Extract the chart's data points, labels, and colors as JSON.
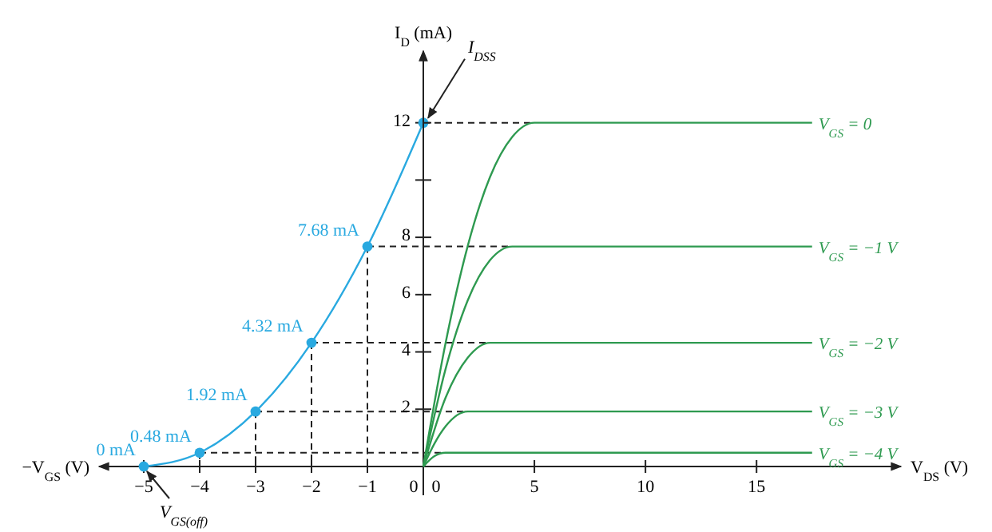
{
  "chart_data": [
    {
      "type": "line",
      "xlabel": "−V$_{GS}$ (V)",
      "ylabel": "I$_{D}$ (mA)",
      "xlim": [
        -5.8,
        0
      ],
      "xticks": [
        -5,
        -4,
        -3,
        -2,
        -1,
        0
      ],
      "ylim": [
        0,
        14.5
      ],
      "yticks": [
        2,
        4,
        6,
        8,
        {
          "value": 10,
          "label": null
        },
        12
      ],
      "marker": "circle",
      "x": [
        -5,
        -4,
        -3,
        -2,
        -1,
        0
      ],
      "series": [
        {
          "color": "#29a9e0",
          "values": [
            0,
            0.48,
            1.92,
            4.32,
            7.68,
            12
          ],
          "value_labels": [
            "0 mA",
            "0.48 mA",
            "1.92 mA",
            "4.32 mA",
            "7.68 mA",
            null
          ]
        }
      ],
      "annotations": [
        {
          "text": "V$_{GS(off)}$",
          "x": -5,
          "y": 0
        },
        {
          "text": "I$_{DSS}$",
          "x": 0,
          "y": 12
        }
      ]
    },
    {
      "type": "line",
      "xlabel": "V$_{DS}$ (V)",
      "xlim": [
        0,
        21.5
      ],
      "xticks": [
        0,
        5,
        10,
        15
      ],
      "ylim": [
        0,
        14.5
      ],
      "tick_labels": "x",
      "marker": "none",
      "series": [
        {
          "name": "V$_{GS}$ = 0",
          "color": "#2e9a50",
          "x": [
            0,
            1,
            2,
            3,
            4,
            5,
            17.5
          ],
          "values": [
            0,
            4.3,
            7.7,
            10.1,
            11.5,
            12,
            12
          ]
        },
        {
          "name": "V$_{GS}$ = −1 V",
          "color": "#2e9a50",
          "x": [
            0,
            1,
            2,
            3,
            4,
            17.5
          ],
          "values": [
            0,
            3.4,
            5.8,
            7.2,
            7.68,
            7.68
          ]
        },
        {
          "name": "V$_{GS}$ = −2 V",
          "color": "#2e9a50",
          "x": [
            0,
            1,
            2,
            3,
            17.5
          ],
          "values": [
            0,
            2.4,
            3.8,
            4.32,
            4.32
          ]
        },
        {
          "name": "V$_{GS}$ = −3 V",
          "color": "#2e9a50",
          "x": [
            0,
            0.5,
            1,
            2,
            17.5
          ],
          "values": [
            0,
            0.8,
            1.4,
            1.92,
            1.92
          ]
        },
        {
          "name": "V$_{GS}$ = −4 V",
          "color": "#2e9a50",
          "x": [
            0,
            0.5,
            1,
            17.5
          ],
          "values": [
            0,
            0.36,
            0.48,
            0.48
          ]
        }
      ]
    }
  ]
}
